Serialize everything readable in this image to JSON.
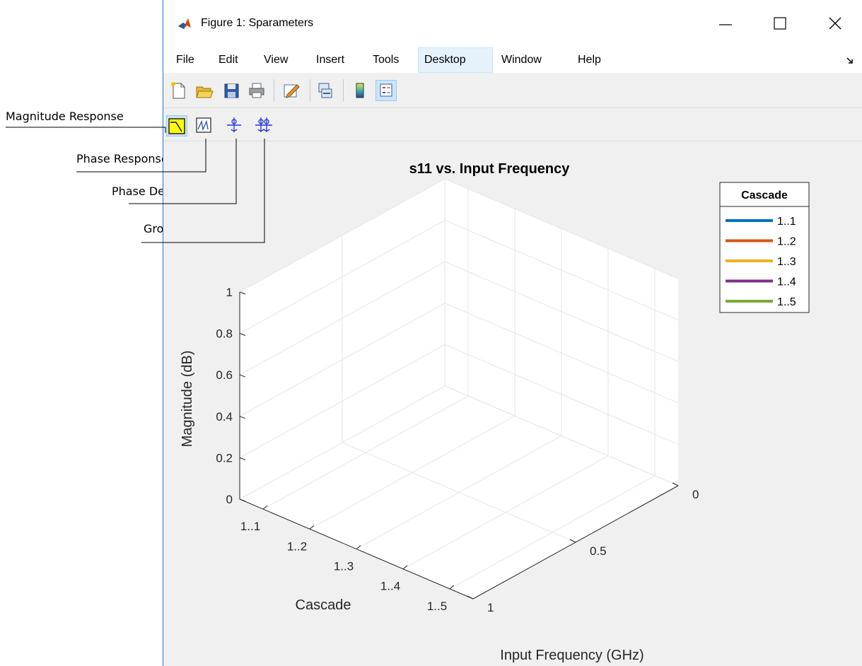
{
  "window": {
    "title": "Figure 1: Sparameters",
    "icons": {
      "app": "matlab-logo-icon",
      "minimize": "minimize-icon",
      "maximize": "maximize-icon",
      "close": "close-icon"
    }
  },
  "menu": {
    "items": [
      "File",
      "Edit",
      "View",
      "Insert",
      "Tools",
      "Desktop",
      "Window",
      "Help"
    ],
    "active": "Desktop",
    "corner_icon": "dock-arrow-icon"
  },
  "toolbar": {
    "buttons": [
      "new-figure-icon",
      "open-file-icon",
      "save-icon",
      "print-icon",
      "edit-plot-icon",
      "link-plot-icon",
      "colorbar-icon",
      "legend-icon"
    ],
    "pressed": "legend-icon"
  },
  "response_toolbar": {
    "buttons": [
      "magnitude-response-icon",
      "phase-response-icon",
      "phase-delay-icon",
      "group-delay-icon"
    ],
    "pressed": "magnitude-response-icon"
  },
  "annotations": {
    "magnitude": "Magnitude Response",
    "phase": "Phase Response",
    "phase_delay": "Phase Delay",
    "group_delay": "Group Delay"
  },
  "chart_data": {
    "type": "line",
    "title": "s11 vs. Input Frequency",
    "xlabel": "Cascade",
    "ylabel": "Input Frequency (GHz)",
    "zlabel": "Magnitude (dB)",
    "x_ticks": [
      "1..1",
      "1..2",
      "1..3",
      "1..4",
      "1..5"
    ],
    "y_ticks": [
      "0",
      "0.5",
      "1"
    ],
    "z_ticks": [
      "0",
      "0.2",
      "0.4",
      "0.6",
      "0.8",
      "1"
    ],
    "zlim": [
      0,
      1
    ],
    "grid": true,
    "legend": {
      "title": "Cascade",
      "placement": "top-right",
      "entries": [
        {
          "name": "1..1",
          "color": "#0072bd"
        },
        {
          "name": "1..2",
          "color": "#d95319"
        },
        {
          "name": "1..3",
          "color": "#edb120"
        },
        {
          "name": "1..4",
          "color": "#7e2f8e"
        },
        {
          "name": "1..5",
          "color": "#77ac30"
        }
      ]
    },
    "series": []
  }
}
